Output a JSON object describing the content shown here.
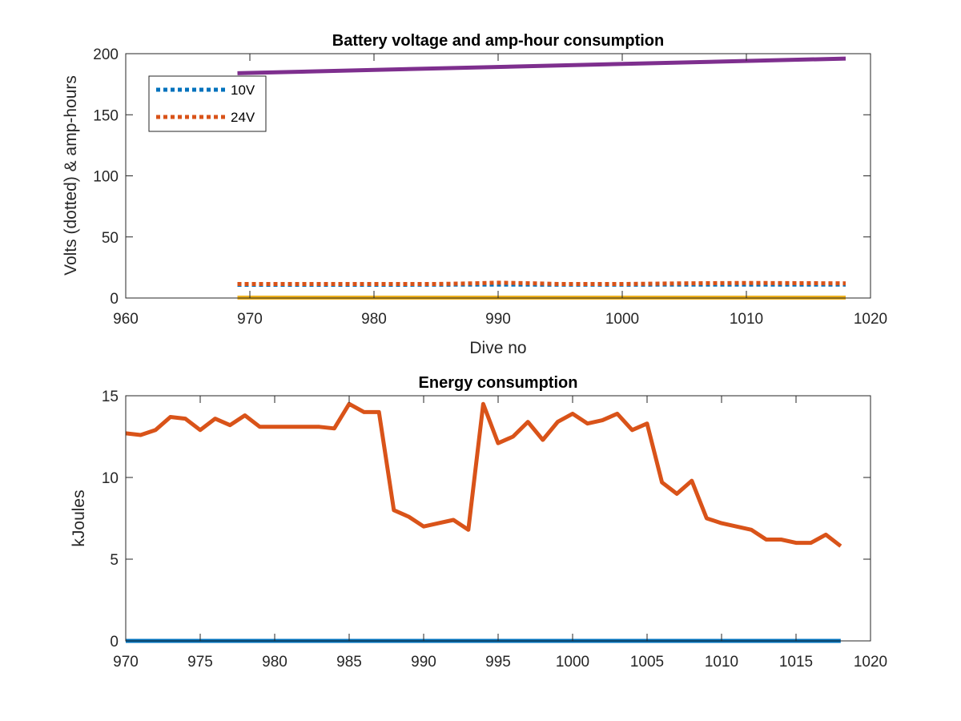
{
  "chart_data": [
    {
      "type": "line",
      "title": "Battery voltage and amp-hour consumption",
      "xlabel": "Dive no",
      "ylabel": "Volts (dotted) & amp-hours",
      "xlim": [
        960,
        1020
      ],
      "ylim": [
        0,
        200
      ],
      "xticks": [
        960,
        970,
        980,
        990,
        1000,
        1010,
        1020
      ],
      "yticks": [
        0,
        50,
        100,
        150,
        200
      ],
      "legend": {
        "placement": "top-left",
        "entries": [
          "10V",
          "24V"
        ]
      },
      "series": [
        {
          "name": "10V",
          "color": "#0072BD",
          "style": "dotted",
          "x": [
            969,
            975,
            980,
            985,
            988,
            990,
            995,
            1000,
            1005,
            1010,
            1018
          ],
          "y": [
            10.8,
            10.8,
            10.8,
            10.9,
            11.0,
            11.0,
            10.9,
            10.9,
            11.0,
            11.0,
            11.0
          ]
        },
        {
          "name": "24V",
          "color": "#D95319",
          "style": "dotted",
          "x": [
            969,
            975,
            980,
            985,
            988,
            990,
            993,
            995,
            1000,
            1005,
            1010,
            1018
          ],
          "y": [
            11.5,
            11.5,
            11.5,
            11.5,
            12.0,
            12.5,
            12.0,
            11.5,
            11.5,
            12.0,
            12.3,
            12.0
          ]
        },
        {
          "color": "#EDB120",
          "style": "solid",
          "x": [
            969,
            1018
          ],
          "y": [
            0.3,
            0.3
          ]
        },
        {
          "color": "#7E2F8E",
          "style": "solid",
          "x": [
            969,
            1018
          ],
          "y": [
            184,
            196
          ]
        }
      ]
    },
    {
      "type": "line",
      "title": "Energy consumption",
      "xlabel": "",
      "ylabel": "kJoules",
      "xlim": [
        970,
        1020
      ],
      "ylim": [
        0,
        15
      ],
      "xticks": [
        970,
        975,
        980,
        985,
        990,
        995,
        1000,
        1005,
        1010,
        1015,
        1020
      ],
      "yticks": [
        0,
        5,
        10,
        15
      ],
      "series": [
        {
          "color": "#0072BD",
          "style": "solid",
          "x": [
            970,
            1018
          ],
          "y": [
            0,
            0
          ]
        },
        {
          "color": "#D95319",
          "style": "solid",
          "x": [
            970,
            971,
            972,
            973,
            974,
            975,
            976,
            977,
            978,
            979,
            980,
            981,
            982,
            983,
            984,
            985,
            986,
            987,
            988,
            989,
            990,
            991,
            992,
            993,
            994,
            995,
            996,
            997,
            998,
            999,
            1000,
            1001,
            1002,
            1003,
            1004,
            1005,
            1006,
            1007,
            1008,
            1009,
            1010,
            1011,
            1012,
            1013,
            1014,
            1015,
            1016,
            1017,
            1018
          ],
          "y": [
            12.7,
            12.6,
            12.9,
            13.7,
            13.6,
            12.9,
            13.6,
            13.2,
            13.8,
            13.1,
            13.1,
            13.1,
            13.1,
            13.1,
            13.0,
            14.5,
            14.0,
            14.0,
            8.0,
            7.6,
            7.0,
            7.2,
            7.4,
            6.8,
            14.5,
            12.1,
            12.5,
            13.4,
            12.3,
            13.4,
            13.9,
            13.3,
            13.5,
            13.9,
            12.9,
            13.3,
            9.7,
            9.0,
            9.8,
            7.5,
            7.2,
            7.0,
            6.8,
            6.2,
            6.2,
            6.0,
            6.0,
            6.5,
            5.8
          ]
        }
      ]
    }
  ]
}
